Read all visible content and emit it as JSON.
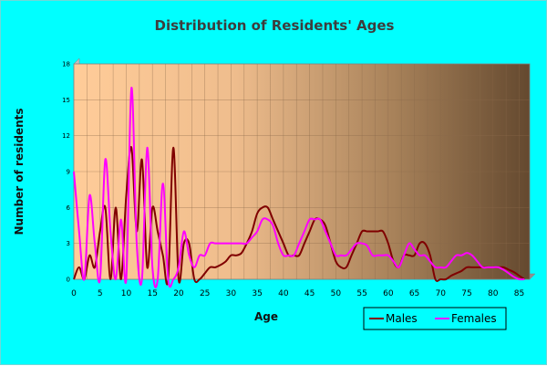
{
  "chart_data": {
    "type": "line",
    "title": "Distribution of Residents' Ages",
    "xlabel": "Age",
    "ylabel": "Number of residents",
    "xlim": [
      0,
      87
    ],
    "ylim": [
      0,
      18
    ],
    "x_ticks": [
      0,
      5,
      10,
      15,
      20,
      25,
      30,
      35,
      40,
      45,
      50,
      55,
      60,
      65,
      70,
      75,
      80,
      85
    ],
    "y_ticks": [
      0,
      3,
      6,
      9,
      12,
      15,
      18
    ],
    "grid": true,
    "legend_position": "bottom-right",
    "series": [
      {
        "name": "Males",
        "color": "#800000",
        "x": [
          0,
          1,
          2,
          3,
          4,
          5,
          6,
          7,
          8,
          9,
          10,
          11,
          12,
          13,
          14,
          15,
          16,
          17,
          18,
          19,
          20,
          21,
          22,
          23,
          24,
          25,
          26,
          27,
          28,
          29,
          30,
          31,
          32,
          33,
          34,
          35,
          36,
          37,
          38,
          39,
          40,
          41,
          42,
          43,
          44,
          45,
          46,
          47,
          48,
          49,
          50,
          51,
          52,
          53,
          54,
          55,
          56,
          57,
          58,
          59,
          60,
          61,
          62,
          63,
          64,
          65,
          66,
          67,
          68,
          69,
          70,
          71,
          72,
          73,
          74,
          75,
          76,
          77,
          78,
          79,
          80,
          81,
          82,
          83,
          84,
          85,
          86
        ],
        "values": [
          0,
          1,
          0,
          2,
          1,
          4,
          6,
          0,
          6,
          0,
          7,
          11,
          4,
          10,
          1,
          6,
          4,
          2,
          0,
          11,
          0,
          3,
          3,
          0,
          0,
          0.5,
          1,
          1,
          1.2,
          1.5,
          2,
          2,
          2.2,
          3,
          4,
          5.5,
          6,
          6,
          5,
          4,
          3,
          2,
          2,
          2,
          3,
          4,
          5,
          5,
          4.5,
          3,
          1.5,
          1,
          1,
          2,
          3,
          4,
          4,
          4,
          4,
          4,
          3,
          1.5,
          1,
          2,
          2,
          2,
          3,
          3,
          2,
          0,
          0,
          0,
          0.3,
          0.5,
          0.7,
          1,
          1,
          1,
          1,
          1,
          1,
          1,
          1,
          0.8,
          0.6,
          0.3,
          0
        ]
      },
      {
        "name": "Females",
        "color": "#FF00FF",
        "x": [
          0,
          1,
          2,
          3,
          4,
          5,
          6,
          7,
          8,
          9,
          10,
          11,
          12,
          13,
          14,
          15,
          16,
          17,
          18,
          19,
          20,
          21,
          22,
          23,
          24,
          25,
          26,
          27,
          28,
          29,
          30,
          31,
          32,
          33,
          34,
          35,
          36,
          37,
          38,
          39,
          40,
          41,
          42,
          43,
          44,
          45,
          46,
          47,
          48,
          49,
          50,
          51,
          52,
          53,
          54,
          55,
          56,
          57,
          58,
          59,
          60,
          61,
          62,
          63,
          64,
          65,
          66,
          67,
          68,
          69,
          70,
          71,
          72,
          73,
          74,
          75,
          76,
          77,
          78,
          79,
          80,
          81,
          82,
          83,
          84,
          85,
          86
        ],
        "values": [
          9,
          4,
          0,
          7,
          3,
          0,
          10,
          4,
          0,
          5,
          0,
          16,
          3,
          0,
          11,
          1,
          0,
          8,
          0,
          0,
          1,
          4,
          2,
          1,
          2,
          2,
          3,
          3,
          3,
          3,
          3,
          3,
          3,
          3,
          3.5,
          4,
          5,
          5,
          4.5,
          3,
          2,
          2,
          2,
          3,
          4,
          5,
          5,
          5,
          4,
          3,
          2,
          2,
          2,
          2.5,
          3,
          3,
          2.8,
          2,
          2,
          2,
          2,
          1.5,
          1,
          2,
          3,
          2.5,
          2,
          2,
          1.5,
          1,
          1,
          1,
          1.5,
          2,
          2,
          2.2,
          2,
          1.5,
          1,
          1,
          1,
          1,
          0.8,
          0.5,
          0.2,
          0,
          0
        ]
      }
    ]
  }
}
